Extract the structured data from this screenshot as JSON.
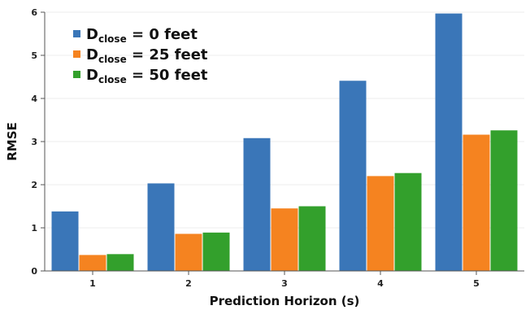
{
  "chart_data": {
    "type": "bar",
    "xlabel": "Prediction Horizon (s)",
    "ylabel": "RMSE",
    "categories": [
      "1",
      "2",
      "3",
      "4",
      "5"
    ],
    "ylim": [
      0,
      6
    ],
    "yticks": [
      "0",
      "1",
      "2",
      "3",
      "4",
      "5",
      "6"
    ],
    "grid": true,
    "legend_position": "top-left",
    "series": [
      {
        "name": "D_close = 0 feet",
        "legend": {
          "main": "D",
          "sub": "close",
          "rest": " = 0 feet"
        },
        "color": "#3a76b8",
        "values": [
          1.38,
          2.03,
          3.08,
          4.41,
          5.97
        ]
      },
      {
        "name": "D_close = 25 feet",
        "legend": {
          "main": "D",
          "sub": "close",
          "rest": " = 25 feet"
        },
        "color": "#f58320",
        "values": [
          0.37,
          0.86,
          1.45,
          2.2,
          3.16
        ]
      },
      {
        "name": "D_close = 50 feet",
        "legend": {
          "main": "D",
          "sub": "close",
          "rest": " = 50 feet"
        },
        "color": "#33a02c",
        "values": [
          0.39,
          0.89,
          1.5,
          2.27,
          3.26
        ]
      }
    ]
  }
}
